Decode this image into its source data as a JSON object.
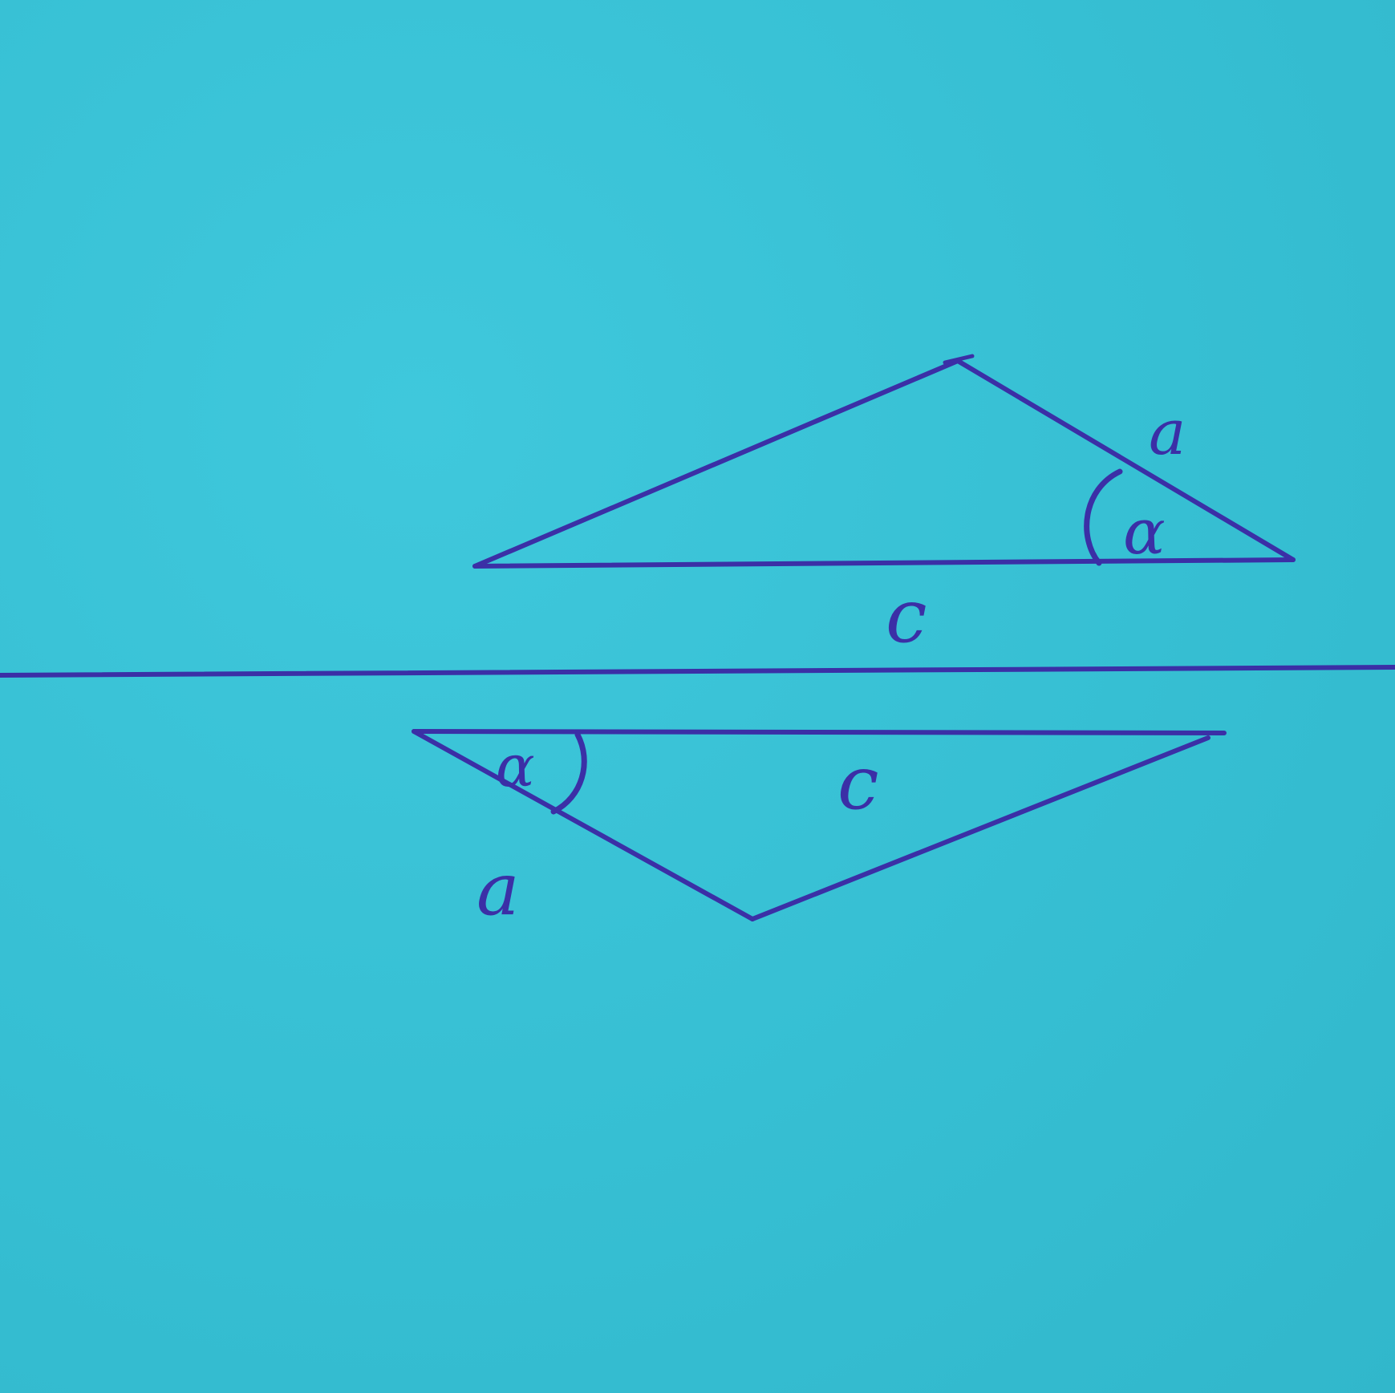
{
  "ink_color": "#3b2fa6",
  "paper_color": "#38c2d6",
  "top_triangle": {
    "side_labels": {
      "a": "a",
      "c": "c"
    },
    "angle_label": "α"
  },
  "bottom_triangle": {
    "side_labels": {
      "a": "a",
      "c": "c"
    },
    "angle_label": "α"
  }
}
